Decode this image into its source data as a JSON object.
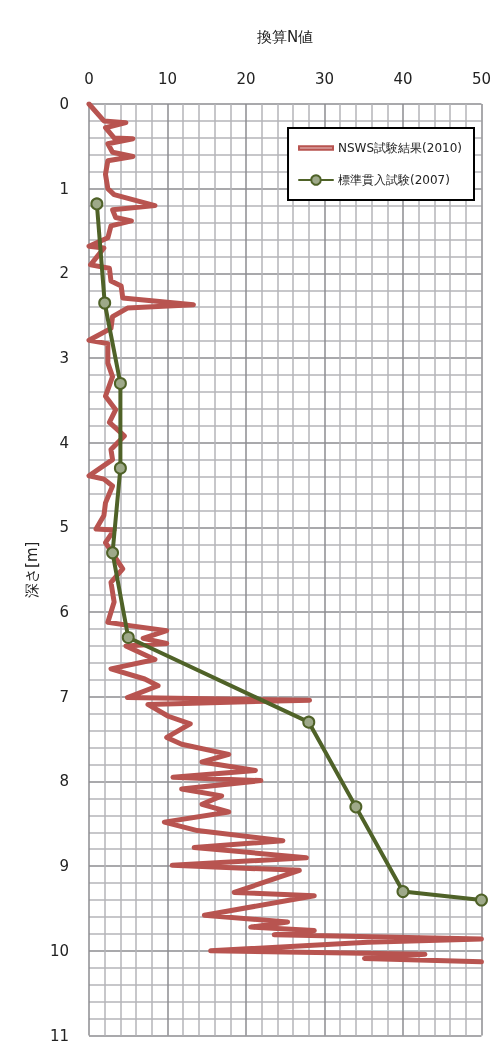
{
  "chart_data": {
    "type": "line",
    "xlabel": "換算N値",
    "ylabel": "深さ[m]",
    "xlim": [
      0,
      50
    ],
    "xticks": [
      0,
      10,
      20,
      30,
      40,
      50
    ],
    "ylim": [
      11,
      0
    ],
    "yticks": [
      0,
      1,
      2,
      3,
      4,
      5,
      6,
      7,
      8,
      9,
      10,
      11
    ],
    "grid": true,
    "legend": "top right",
    "series": [
      {
        "name": "NSWS試験結果(2010)",
        "color": "#b85450",
        "marker": "none",
        "x": [
          0,
          1.9,
          4.7,
          2.1,
          3.2,
          5.6,
          2.4,
          3,
          5.6,
          2.4,
          2.1,
          2.4,
          3.2,
          8.4,
          3,
          3.4,
          5.4,
          2.8,
          2.4,
          0,
          1.9,
          0.2,
          2.6,
          2.8,
          4.1,
          4.3,
          13.3,
          4.9,
          3,
          2.8,
          0,
          2.4,
          2.4,
          3,
          2.1,
          3.4,
          2.6,
          4.5,
          2.8,
          3,
          0,
          1.9,
          3,
          2.1,
          1.9,
          0.9,
          3.2,
          2.1,
          4.3,
          2.8,
          3.2,
          2.4,
          5.2,
          9.9,
          6.9,
          9.9,
          4.7,
          8.4,
          2.8,
          7.1,
          8.8,
          4.9,
          28.1,
          7.5,
          10.1,
          12.9,
          9.9,
          11.8,
          17.8,
          14.4,
          21.2,
          10.7,
          21.9,
          11.8,
          16.9,
          14.4,
          17.8,
          9.6,
          13.8,
          24.7,
          13.4,
          27.7,
          10.6,
          26.8,
          18.5,
          28.7,
          14.7,
          25.3,
          20.6,
          28.7,
          23.6,
          50,
          35.5,
          15.5,
          42.8,
          35.1,
          50
        ],
        "values": [
          0,
          0.2,
          0.22,
          0.28,
          0.4,
          0.41,
          0.47,
          0.57,
          0.62,
          0.67,
          0.83,
          1.0,
          1.07,
          1.2,
          1.25,
          1.34,
          1.38,
          1.44,
          1.58,
          1.68,
          1.7,
          1.9,
          1.94,
          2.09,
          2.15,
          2.29,
          2.37,
          2.41,
          2.51,
          2.65,
          2.79,
          2.83,
          3.06,
          3.22,
          3.45,
          3.61,
          3.76,
          3.92,
          4.08,
          4.2,
          4.39,
          4.43,
          4.51,
          4.71,
          4.86,
          5.02,
          5.03,
          5.18,
          5.49,
          5.65,
          5.88,
          6.12,
          6.16,
          6.22,
          6.31,
          6.37,
          6.4,
          6.56,
          6.67,
          6.79,
          6.87,
          7.01,
          7.04,
          7.09,
          7.23,
          7.32,
          7.48,
          7.56,
          7.68,
          7.77,
          7.87,
          7.95,
          7.99,
          8.09,
          8.17,
          8.27,
          8.36,
          8.48,
          8.58,
          8.7,
          8.78,
          8.9,
          8.99,
          9.05,
          9.31,
          9.35,
          9.58,
          9.66,
          9.72,
          9.76,
          9.81,
          9.86,
          9.9,
          10.0,
          10.04,
          10.09,
          10.13
        ]
      },
      {
        "name": "標準貫入試験(2007)",
        "color": "#4f6228",
        "marker": "circle",
        "x": [
          1,
          2,
          4,
          4,
          3,
          5,
          28,
          34,
          40,
          50
        ],
        "values": [
          1.18,
          2.35,
          3.3,
          4.3,
          5.3,
          6.3,
          7.3,
          8.3,
          9.3,
          9.4
        ]
      }
    ]
  }
}
